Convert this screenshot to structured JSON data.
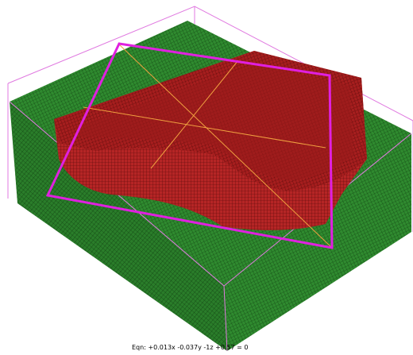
{
  "status": {
    "equation": "Eqn:  +0.013x -0.037y -1z +0.57 = 0"
  }
}
